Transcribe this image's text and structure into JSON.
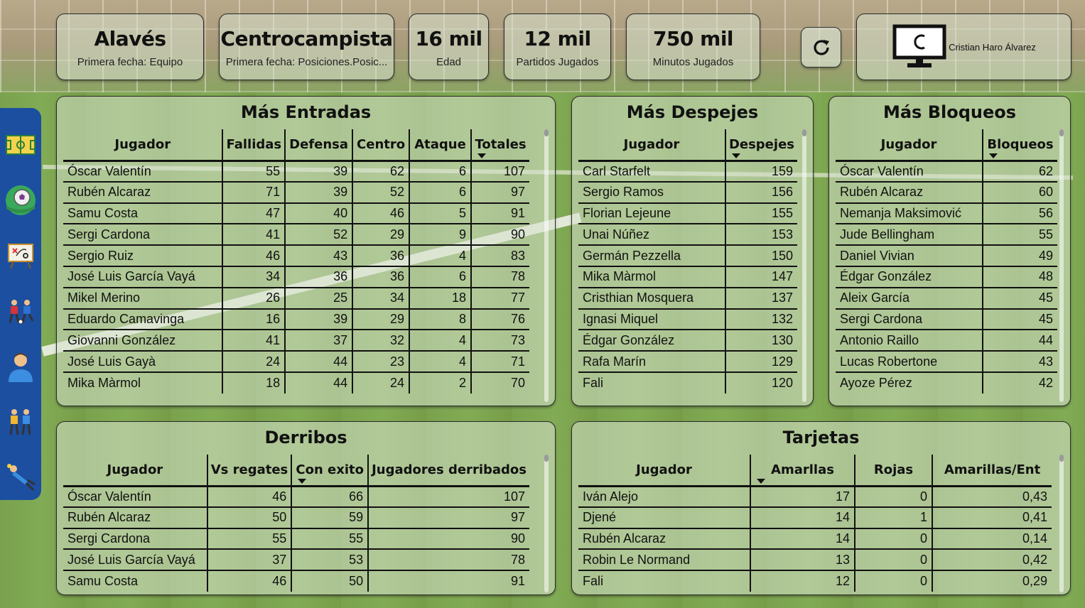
{
  "kpis": [
    {
      "value": "Alavés",
      "label": "Primera fecha: Equipo"
    },
    {
      "value": "Centrocampista",
      "label": "Primera fecha: Posiciones.Posic..."
    },
    {
      "value": "16 mil",
      "label": "Edad"
    },
    {
      "value": "12 mil",
      "label": "Partidos Jugados"
    },
    {
      "value": "750 mil",
      "label": "Minutos Jugados"
    }
  ],
  "brand": {
    "name": "Cristian Haro Álvarez",
    "icon": "monitor-logo-icon"
  },
  "refresh": {
    "icon": "refresh-icon"
  },
  "sidebar": [
    {
      "icon": "field-icon"
    },
    {
      "icon": "ball-icon"
    },
    {
      "icon": "tactics-board-icon"
    },
    {
      "icon": "players-icon"
    },
    {
      "icon": "player-avatar-icon"
    },
    {
      "icon": "team-icon"
    },
    {
      "icon": "goalkeeper-icon"
    }
  ],
  "entradas": {
    "title": "Más Entradas",
    "headers": [
      "Jugador",
      "Fallidas",
      "Defensa",
      "Centro",
      "Ataque",
      "Totales"
    ],
    "rows": [
      [
        "Óscar Valentín",
        "55",
        "39",
        "62",
        "6",
        "107"
      ],
      [
        "Rubén Alcaraz",
        "71",
        "39",
        "52",
        "6",
        "97"
      ],
      [
        "Samu Costa",
        "47",
        "40",
        "46",
        "5",
        "91"
      ],
      [
        "Sergi Cardona",
        "41",
        "52",
        "29",
        "9",
        "90"
      ],
      [
        "Sergio Ruiz",
        "46",
        "43",
        "36",
        "4",
        "83"
      ],
      [
        "José Luis García Vayá",
        "34",
        "36",
        "36",
        "6",
        "78"
      ],
      [
        "Mikel Merino",
        "26",
        "25",
        "34",
        "18",
        "77"
      ],
      [
        "Eduardo Camavinga",
        "16",
        "39",
        "29",
        "8",
        "76"
      ],
      [
        "Giovanni González",
        "41",
        "37",
        "32",
        "4",
        "73"
      ],
      [
        "José Luis Gayà",
        "24",
        "44",
        "23",
        "4",
        "71"
      ],
      [
        "Mika Màrmol",
        "18",
        "44",
        "24",
        "2",
        "70"
      ]
    ]
  },
  "despejes": {
    "title": "Más Despejes",
    "headers": [
      "Jugador",
      "Despejes"
    ],
    "rows": [
      [
        "Carl Starfelt",
        "159"
      ],
      [
        "Sergio Ramos",
        "156"
      ],
      [
        "Florian Lejeune",
        "155"
      ],
      [
        "Unai Núñez",
        "153"
      ],
      [
        "Germán Pezzella",
        "150"
      ],
      [
        "Mika Màrmol",
        "147"
      ],
      [
        "Cristhian Mosquera",
        "137"
      ],
      [
        "Ignasi Miquel",
        "132"
      ],
      [
        "Édgar González",
        "130"
      ],
      [
        "Rafa Marín",
        "129"
      ],
      [
        "Fali",
        "120"
      ]
    ]
  },
  "bloqueos": {
    "title": "Más Bloqueos",
    "headers": [
      "Jugador",
      "Bloqueos"
    ],
    "rows": [
      [
        "Óscar Valentín",
        "62"
      ],
      [
        "Rubén Alcaraz",
        "60"
      ],
      [
        "Nemanja Maksimović",
        "56"
      ],
      [
        "Jude Bellingham",
        "55"
      ],
      [
        "Daniel Vivian",
        "49"
      ],
      [
        "Édgar González",
        "48"
      ],
      [
        "Aleix García",
        "45"
      ],
      [
        "Sergi Cardona",
        "45"
      ],
      [
        "Antonio Raillo",
        "44"
      ],
      [
        "Lucas Robertone",
        "43"
      ],
      [
        "Ayoze Pérez",
        "42"
      ]
    ]
  },
  "derribos": {
    "title": "Derribos",
    "headers": [
      "Jugador",
      "Vs regates",
      "Con exito",
      "Jugadores derribados"
    ],
    "rows": [
      [
        "Óscar Valentín",
        "46",
        "66",
        "107"
      ],
      [
        "Rubén Alcaraz",
        "50",
        "59",
        "97"
      ],
      [
        "Sergi Cardona",
        "55",
        "55",
        "90"
      ],
      [
        "José Luis García Vayá",
        "37",
        "53",
        "78"
      ],
      [
        "Samu Costa",
        "46",
        "50",
        "91"
      ]
    ]
  },
  "tarjetas": {
    "title": "Tarjetas",
    "headers": [
      "Jugador",
      "Amarllas",
      "Rojas",
      "Amarillas/Ent"
    ],
    "rows": [
      [
        "Iván Alejo",
        "17",
        "0",
        "0,43"
      ],
      [
        "Djené",
        "14",
        "1",
        "0,41"
      ],
      [
        "Rubén Alcaraz",
        "14",
        "0",
        "0,14"
      ],
      [
        "Robin Le Normand",
        "13",
        "0",
        "0,42"
      ],
      [
        "Fali",
        "12",
        "0",
        "0,29"
      ]
    ]
  }
}
